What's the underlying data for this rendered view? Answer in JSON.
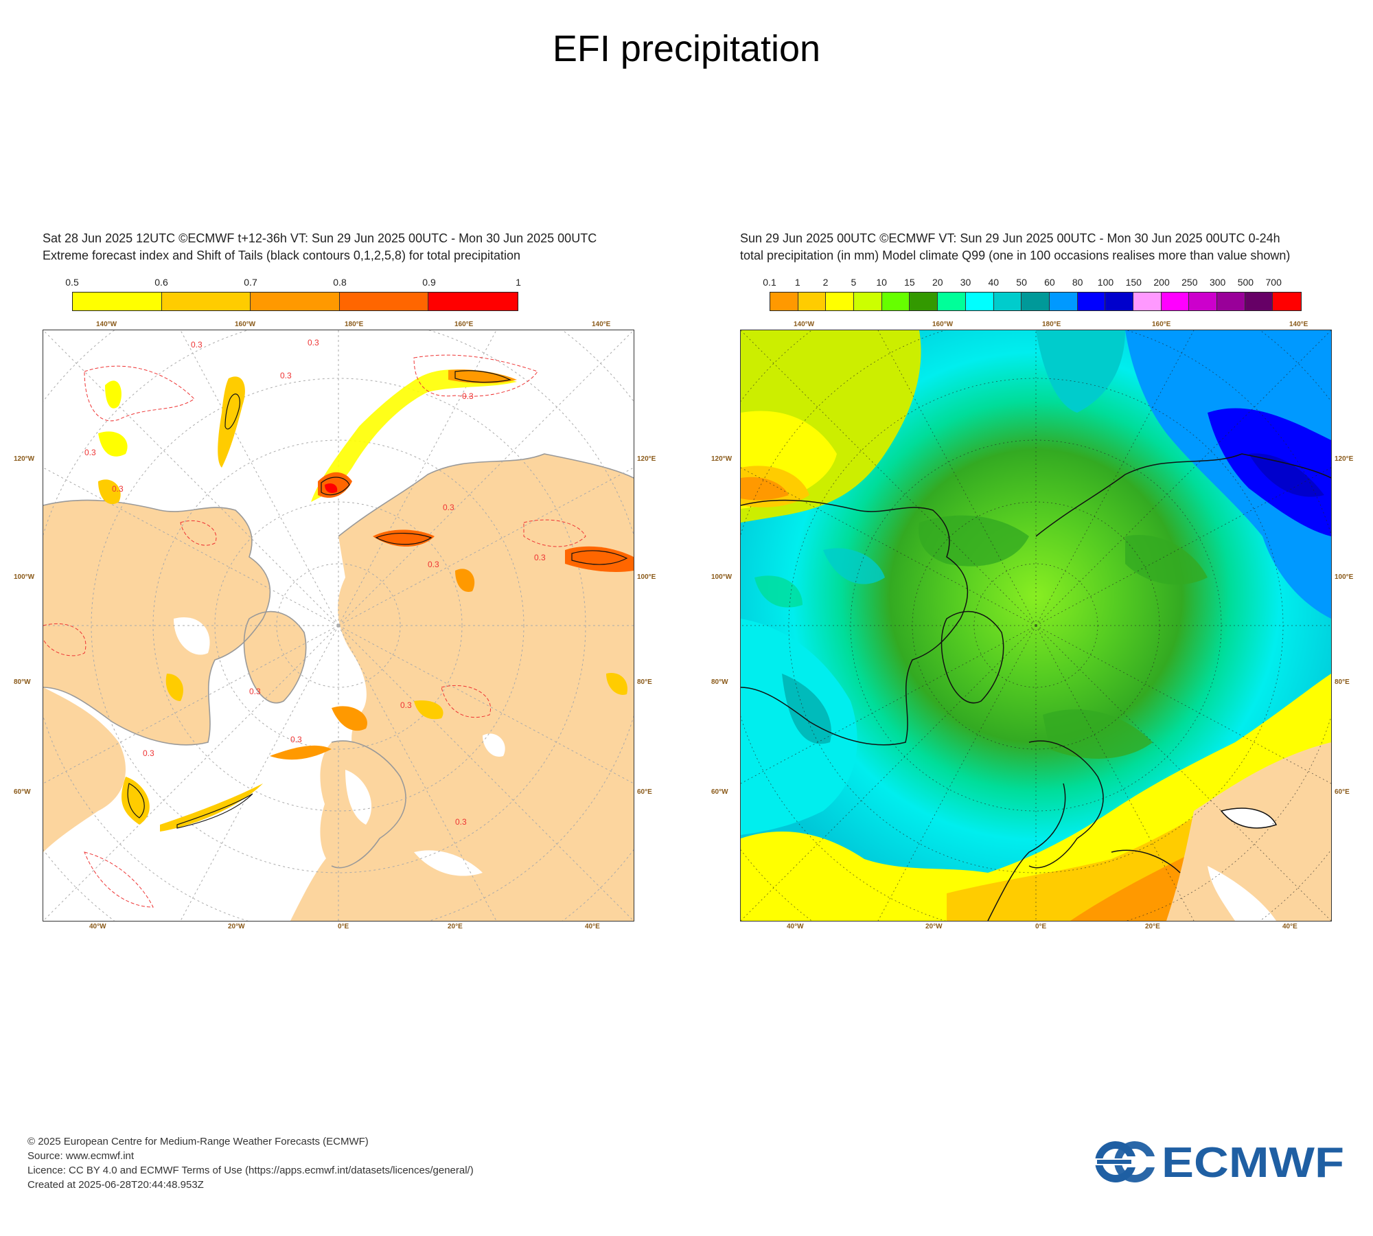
{
  "main_title": "EFI precipitation",
  "left_panel": {
    "title_line1": "Sat 28 Jun 2025 12UTC ©ECMWF t+12-36h  VT: Sun 29 Jun 2025 00UTC - Mon 30 Jun 2025 00UTC",
    "title_line2": "Extreme forecast index and Shift of Tails (black contours 0,1,2,5,8) for total precipitation",
    "colorbar_labels": [
      "0.5",
      "0.6",
      "0.7",
      "0.8",
      "0.9",
      "1"
    ],
    "colorbar_colors": [
      "#ffff00",
      "#ffcc00",
      "#ff9900",
      "#ff6600",
      "#ff0000"
    ],
    "top_degree_labels": [
      "140°W",
      "160°W",
      "180°E",
      "160°E",
      "140°E"
    ],
    "bottom_degree_labels": [
      "40°W",
      "20°W",
      "0°E",
      "20°E",
      "40°E"
    ],
    "left_degree_labels": [
      "120°W",
      "100°W",
      "80°W",
      "60°W"
    ],
    "right_degree_labels": [
      "120°E",
      "100°E",
      "80°E",
      "60°E"
    ],
    "contour_label": "0.3"
  },
  "right_panel": {
    "title_line1": "Sun 29 Jun 2025 00UTC ©ECMWF VT: Sun 29 Jun 2025 00UTC - Mon 30 Jun 2025 00UTC   0-24h",
    "title_line2": "total precipitation (in mm)  Model climate Q99 (one in 100 occasions realises more than value shown)",
    "colorbar_labels": [
      "0.1",
      "1",
      "2",
      "5",
      "10",
      "15",
      "20",
      "30",
      "40",
      "50",
      "60",
      "80",
      "100",
      "150",
      "200",
      "250",
      "300",
      "500",
      "700"
    ],
    "colorbar_colors": [
      "#ff9900",
      "#ffcc00",
      "#ffff00",
      "#ccff00",
      "#66ff00",
      "#339900",
      "#00ff99",
      "#00ffff",
      "#00cccc",
      "#009999",
      "#0099ff",
      "#0000ff",
      "#0000cc",
      "#ff99ff",
      "#ff00ff",
      "#cc00cc",
      "#990099",
      "#660066",
      "#ff0000"
    ],
    "top_degree_labels": [
      "140°W",
      "160°W",
      "180°E",
      "160°E",
      "140°E"
    ],
    "bottom_degree_labels": [
      "40°W",
      "20°W",
      "0°E",
      "20°E",
      "40°E"
    ],
    "left_degree_labels": [
      "120°W",
      "100°W",
      "80°W",
      "60°W"
    ],
    "right_degree_labels": [
      "120°E",
      "100°E",
      "80°E",
      "60°E"
    ]
  },
  "footer": {
    "line1": "© 2025 European Centre for Medium-Range Weather Forecasts (ECMWF)",
    "line2": "Source: www.ecmwf.int",
    "line3": "Licence: CC BY 4.0 and ECMWF Terms of Use (https://apps.ecmwf.int/datasets/licences/general/)",
    "line4": "Created at 2025-06-28T20:44:48.953Z"
  },
  "logo": {
    "text": "ECMWF",
    "color": "#1f5fa3"
  }
}
